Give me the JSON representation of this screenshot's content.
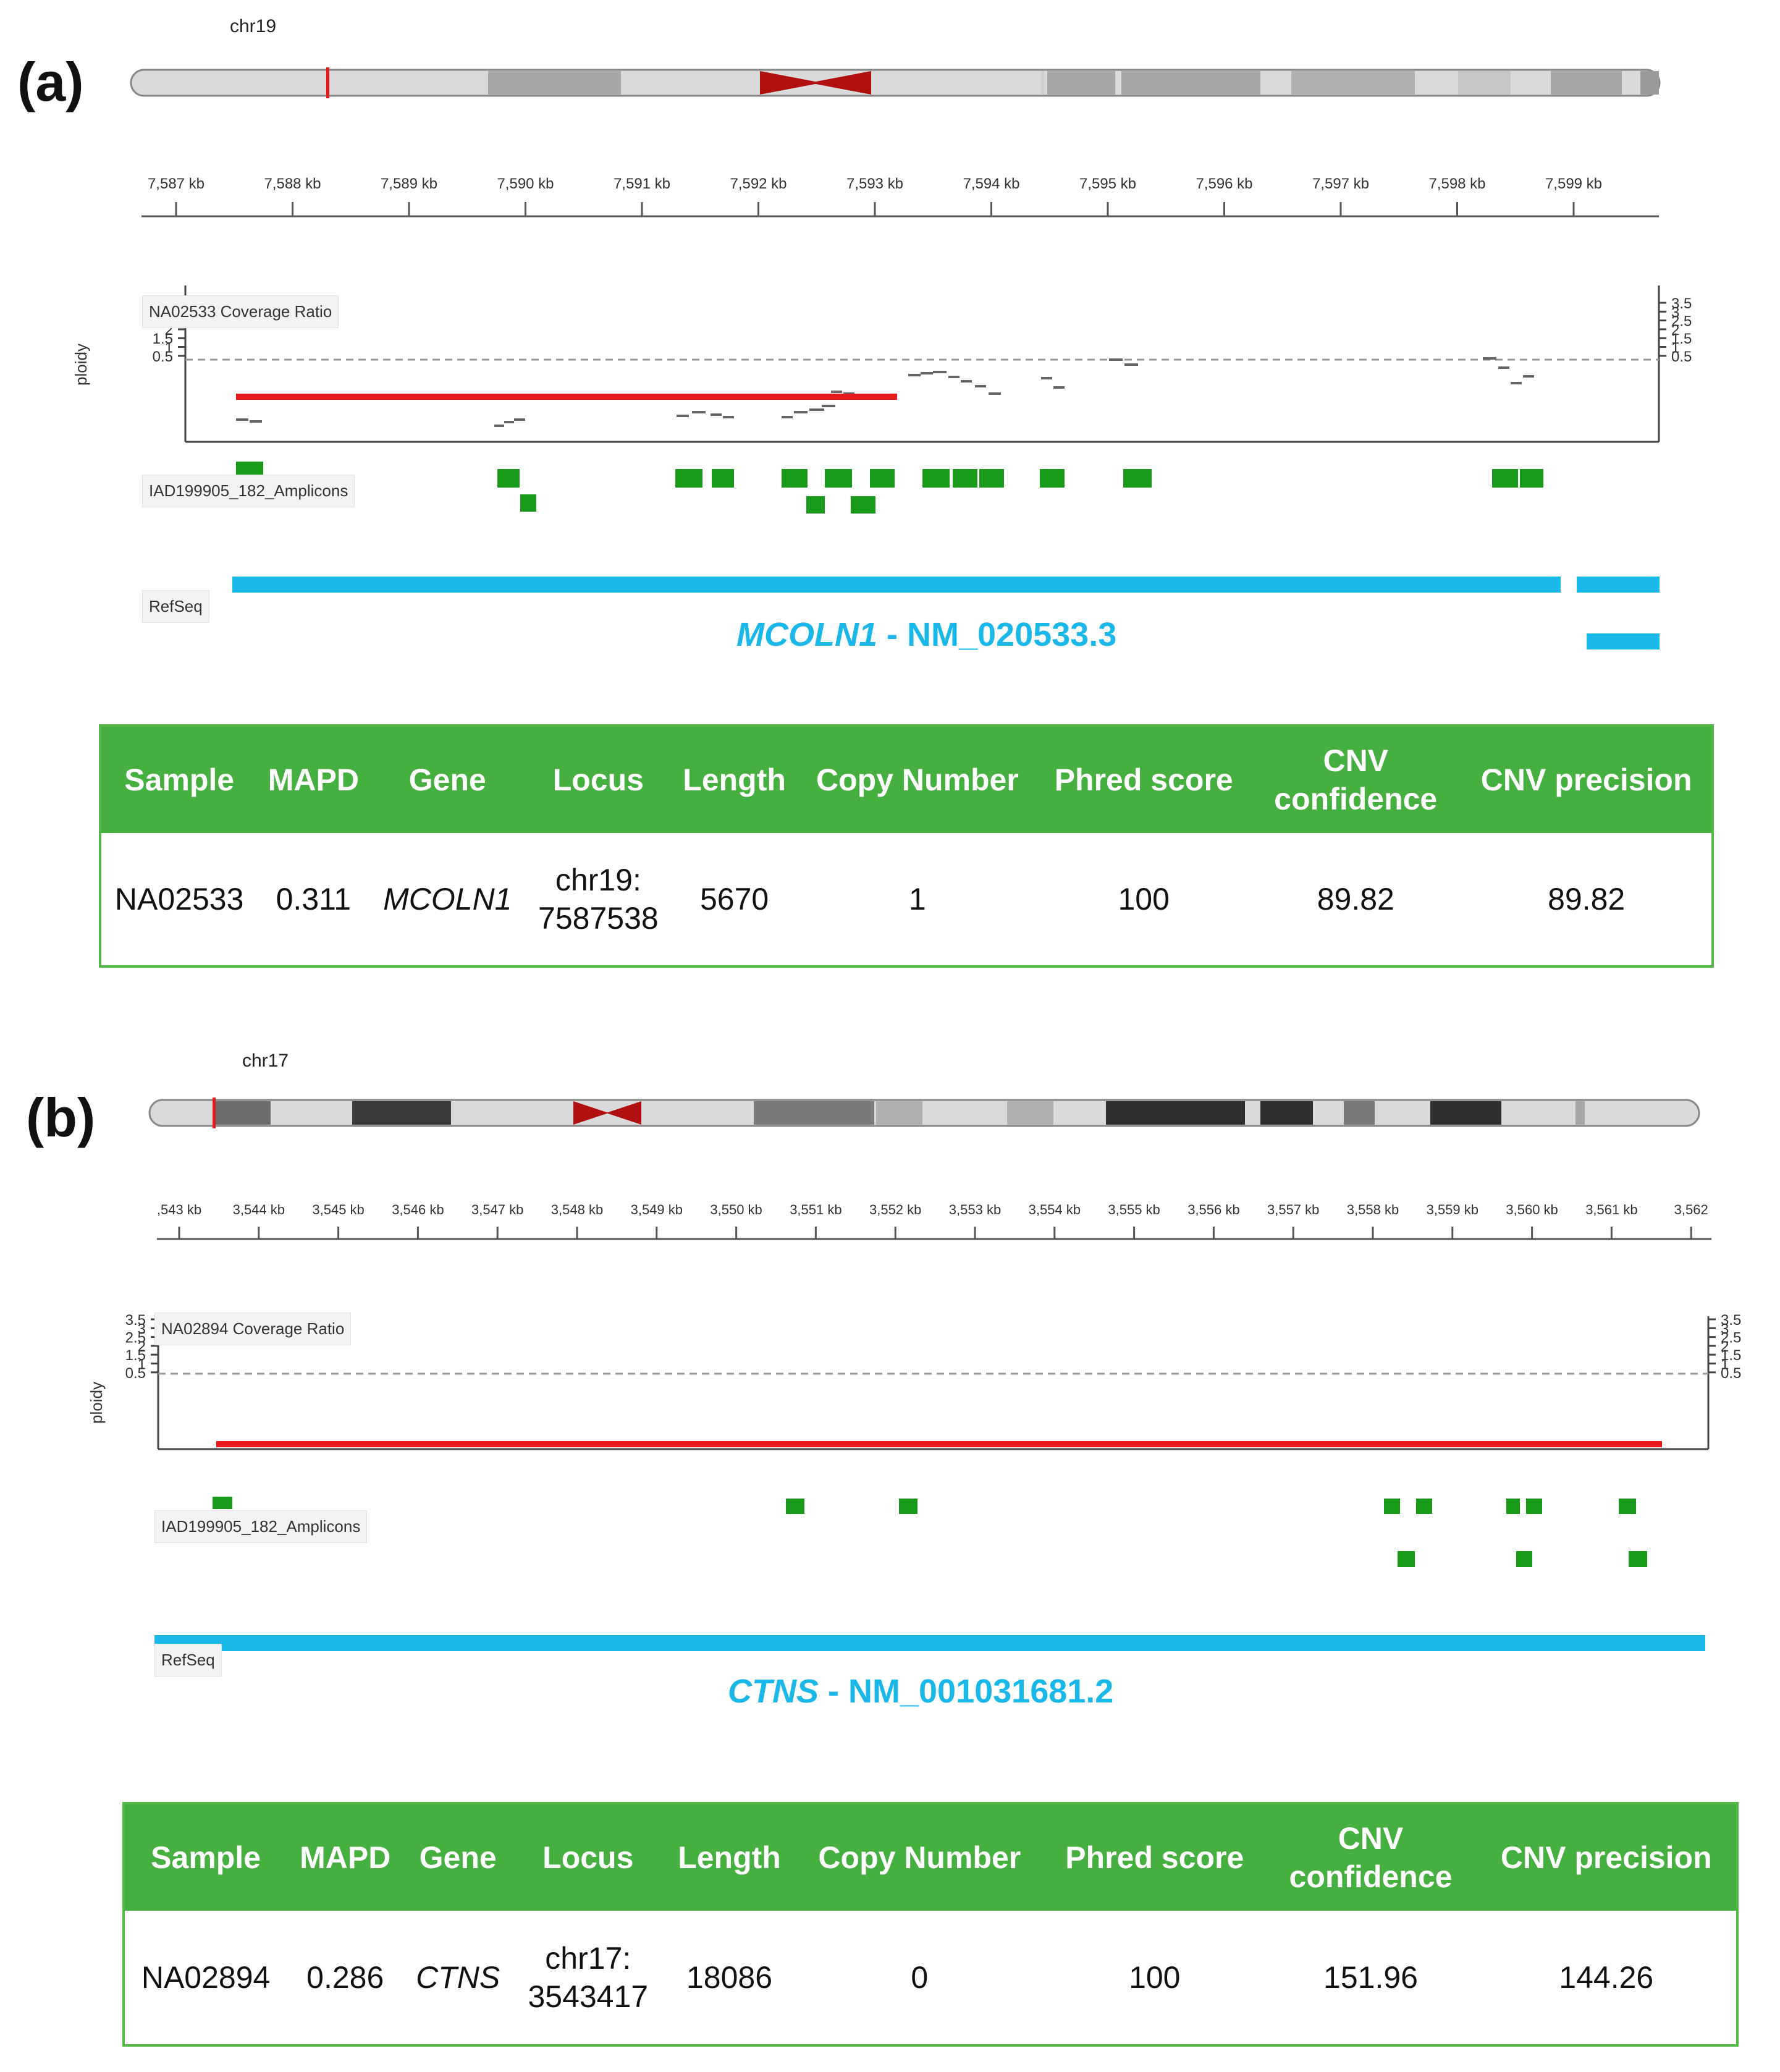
{
  "panels": [
    {
      "label": "(a)",
      "chromosome": "chr19",
      "ruler_ticks": [
        "7,587 kb",
        "7,588 kb",
        "7,589 kb",
        "7,590 kb",
        "7,591 kb",
        "7,592 kb",
        "7,593 kb",
        "7,594 kb",
        "7,595 kb",
        "7,596 kb",
        "7,597 kb",
        "7,598 kb",
        "7,599 kb"
      ],
      "coverage_label": "NA02533 Coverage Ratio",
      "ploidy_label": "ploidy",
      "ploidy_ticks": [
        "3.5",
        "3",
        "2.5",
        "2",
        "1.5",
        "1",
        "0.5"
      ],
      "amplicon_label": "IAD199905_182_Amplicons",
      "refseq_label": "RefSeq",
      "gene_name": "MCOLN1",
      "gene_transcript": " - NM_020533.3",
      "table": {
        "headers": [
          "Sample",
          "MAPD",
          "Gene",
          "Locus",
          "Length",
          "Copy Number",
          "Phred score",
          "CNV confidence",
          "CNV precision"
        ],
        "row": {
          "sample": "NA02533",
          "mapd": "0.311",
          "gene": "MCOLN1",
          "locus_line1": "chr19:",
          "locus_line2": "7587538",
          "length": "5670",
          "copy_number": "1",
          "phred": "100",
          "cnv_confidence": "89.82",
          "cnv_precision": "89.82"
        }
      }
    },
    {
      "label": "(b)",
      "chromosome": "chr17",
      "ruler_ticks": [
        ",543 kb",
        "3,544 kb",
        "3,545 kb",
        "3,546 kb",
        "3,547 kb",
        "3,548 kb",
        "3,549 kb",
        "3,550 kb",
        "3,551 kb",
        "3,552 kb",
        "3,553 kb",
        "3,554 kb",
        "3,555 kb",
        "3,556 kb",
        "3,557 kb",
        "3,558 kb",
        "3,559 kb",
        "3,560 kb",
        "3,561 kb",
        "3,562"
      ],
      "coverage_label": "NA02894 Coverage Ratio",
      "ploidy_label": "ploidy",
      "ploidy_ticks": [
        "3.5",
        "3",
        "2.5",
        "2",
        "1.5",
        "1",
        "0.5"
      ],
      "amplicon_label": "IAD199905_182_Amplicons",
      "refseq_label": "RefSeq",
      "gene_name": "CTNS",
      "gene_transcript": " - NM_001031681.2",
      "table": {
        "headers": [
          "Sample",
          "MAPD",
          "Gene",
          "Locus",
          "Length",
          "Copy Number",
          "Phred score",
          "CNV confidence",
          "CNV precision"
        ],
        "row": {
          "sample": "NA02894",
          "mapd": "0.286",
          "gene": "CTNS",
          "locus_line1": "chr17:",
          "locus_line2": "3543417",
          "length": "18086",
          "copy_number": "0",
          "phred": "100",
          "cnv_confidence": "151.96",
          "cnv_precision": "144.26"
        }
      }
    }
  ],
  "colors": {
    "cnv_segment": "#e8191b",
    "amplicon": "#1a9a1a",
    "refseq": "#1ab8e8",
    "table_header": "#45b03f",
    "centromere": "#b01010"
  }
}
